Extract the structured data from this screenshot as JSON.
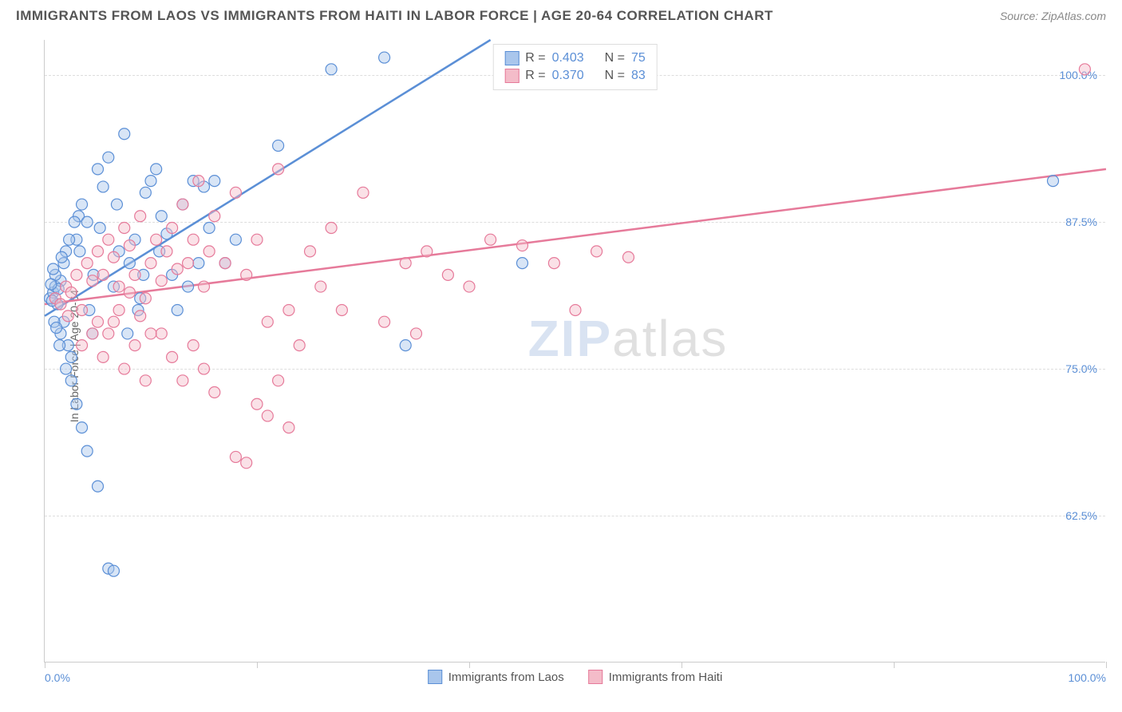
{
  "header": {
    "title": "IMMIGRANTS FROM LAOS VS IMMIGRANTS FROM HAITI IN LABOR FORCE | AGE 20-64 CORRELATION CHART",
    "source": "Source: ZipAtlas.com"
  },
  "chart": {
    "type": "scatter",
    "ylabel": "In Labor Force | Age 20-64",
    "xlim": [
      0,
      100
    ],
    "ylim": [
      50,
      103
    ],
    "xtick_positions": [
      0,
      20,
      40,
      60,
      80,
      100
    ],
    "xtick_labels_shown": {
      "0": "0.0%",
      "100": "100.0%"
    },
    "ytick_positions": [
      62.5,
      75.0,
      87.5,
      100.0
    ],
    "ytick_labels": [
      "62.5%",
      "75.0%",
      "87.5%",
      "100.0%"
    ],
    "grid_color": "#dddddd",
    "axis_color": "#cccccc",
    "background_color": "#ffffff",
    "watermark": "ZIPatlas",
    "series": [
      {
        "id": "laos",
        "label": "Immigrants from Laos",
        "color_fill": "#a9c6ec",
        "color_stroke": "#5b8fd6",
        "marker_radius": 7,
        "fill_opacity": 0.45,
        "R": "0.403",
        "N": "75",
        "trend": {
          "x1": 0,
          "y1": 79.5,
          "x2": 42,
          "y2": 103,
          "stroke_width": 2.5
        },
        "points": [
          [
            0.5,
            81
          ],
          [
            0.8,
            81.5
          ],
          [
            1.0,
            82
          ],
          [
            1.2,
            80.5
          ],
          [
            1.5,
            82.5
          ],
          [
            1.0,
            83
          ],
          [
            1.3,
            81.8
          ],
          [
            0.7,
            80.8
          ],
          [
            1.8,
            84
          ],
          [
            2.0,
            85
          ],
          [
            2.2,
            77
          ],
          [
            2.5,
            74
          ],
          [
            3.0,
            86
          ],
          [
            3.2,
            88
          ],
          [
            3.5,
            89
          ],
          [
            4.0,
            87.5
          ],
          [
            4.2,
            80
          ],
          [
            4.5,
            78
          ],
          [
            5.0,
            92
          ],
          [
            5.5,
            90.5
          ],
          [
            6.0,
            93
          ],
          [
            6.5,
            82
          ],
          [
            7.0,
            85
          ],
          [
            7.5,
            95
          ],
          [
            8.0,
            84
          ],
          [
            8.5,
            86
          ],
          [
            9.0,
            81
          ],
          [
            9.5,
            90
          ],
          [
            10.0,
            91
          ],
          [
            10.5,
            92
          ],
          [
            11.0,
            88
          ],
          [
            12.0,
            83
          ],
          [
            13.0,
            89
          ],
          [
            14.0,
            91
          ],
          [
            15.0,
            90.5
          ],
          [
            16.0,
            91
          ],
          [
            17.0,
            84
          ],
          [
            18.0,
            86
          ],
          [
            3.0,
            72
          ],
          [
            3.5,
            70
          ],
          [
            4.0,
            68
          ],
          [
            5.0,
            65
          ],
          [
            6.0,
            58
          ],
          [
            6.5,
            57.8
          ],
          [
            2.0,
            75
          ],
          [
            2.5,
            76
          ],
          [
            1.5,
            78
          ],
          [
            1.8,
            79
          ],
          [
            0.9,
            79
          ],
          [
            1.1,
            78.5
          ],
          [
            1.4,
            77
          ],
          [
            0.6,
            82.2
          ],
          [
            0.8,
            83.5
          ],
          [
            1.6,
            84.5
          ],
          [
            2.3,
            86
          ],
          [
            2.8,
            87.5
          ],
          [
            3.3,
            85
          ],
          [
            4.6,
            83
          ],
          [
            5.2,
            87
          ],
          [
            6.8,
            89
          ],
          [
            7.8,
            78
          ],
          [
            8.8,
            80
          ],
          [
            9.3,
            83
          ],
          [
            10.8,
            85
          ],
          [
            11.5,
            86.5
          ],
          [
            12.5,
            80
          ],
          [
            13.5,
            82
          ],
          [
            14.5,
            84
          ],
          [
            15.5,
            87
          ],
          [
            22,
            94
          ],
          [
            27,
            100.5
          ],
          [
            32,
            101.5
          ],
          [
            34,
            77
          ],
          [
            45,
            84
          ],
          [
            95,
            91
          ]
        ]
      },
      {
        "id": "haiti",
        "label": "Immigrants from Haiti",
        "color_fill": "#f4bcc9",
        "color_stroke": "#e67a9a",
        "marker_radius": 7,
        "fill_opacity": 0.45,
        "R": "0.370",
        "N": "83",
        "trend": {
          "x1": 0,
          "y1": 80.5,
          "x2": 100,
          "y2": 92,
          "stroke_width": 2.5
        },
        "points": [
          [
            1.0,
            81
          ],
          [
            1.5,
            80.5
          ],
          [
            2.0,
            82
          ],
          [
            2.5,
            81.5
          ],
          [
            3.0,
            83
          ],
          [
            3.5,
            80
          ],
          [
            4.0,
            84
          ],
          [
            4.5,
            82.5
          ],
          [
            5.0,
            85
          ],
          [
            5.5,
            83
          ],
          [
            6.0,
            86
          ],
          [
            6.5,
            84.5
          ],
          [
            7.0,
            82
          ],
          [
            7.5,
            87
          ],
          [
            8.0,
            85.5
          ],
          [
            8.5,
            83
          ],
          [
            9.0,
            88
          ],
          [
            9.5,
            81
          ],
          [
            10.0,
            84
          ],
          [
            10.5,
            86
          ],
          [
            11.0,
            82.5
          ],
          [
            11.5,
            85
          ],
          [
            12.0,
            87
          ],
          [
            12.5,
            83.5
          ],
          [
            13.0,
            89
          ],
          [
            13.5,
            84
          ],
          [
            14.0,
            86
          ],
          [
            14.5,
            91
          ],
          [
            15.0,
            82
          ],
          [
            15.5,
            85
          ],
          [
            16.0,
            88
          ],
          [
            17.0,
            84
          ],
          [
            18.0,
            90
          ],
          [
            19.0,
            83
          ],
          [
            20.0,
            86
          ],
          [
            21.0,
            79
          ],
          [
            22.0,
            92
          ],
          [
            23.0,
            80
          ],
          [
            24.0,
            77
          ],
          [
            25.0,
            85
          ],
          [
            26.0,
            82
          ],
          [
            27.0,
            87
          ],
          [
            28.0,
            80
          ],
          [
            14.0,
            77
          ],
          [
            15.0,
            75
          ],
          [
            16.0,
            73
          ],
          [
            18.0,
            67.5
          ],
          [
            19.0,
            67
          ],
          [
            20.0,
            72
          ],
          [
            21.0,
            71
          ],
          [
            22.0,
            74
          ],
          [
            23.0,
            70
          ],
          [
            11.0,
            78
          ],
          [
            12.0,
            76
          ],
          [
            13.0,
            74
          ],
          [
            30.0,
            90
          ],
          [
            32.0,
            79
          ],
          [
            34.0,
            84
          ],
          [
            36.0,
            85
          ],
          [
            38.0,
            83
          ],
          [
            42.0,
            86
          ],
          [
            45.0,
            85.5
          ],
          [
            48.0,
            84
          ],
          [
            50.0,
            80
          ],
          [
            52.0,
            85
          ],
          [
            55.0,
            84.5
          ],
          [
            3.5,
            77
          ],
          [
            4.5,
            78
          ],
          [
            5.5,
            76
          ],
          [
            6.5,
            79
          ],
          [
            7.5,
            75
          ],
          [
            8.5,
            77
          ],
          [
            9.5,
            74
          ],
          [
            35,
            78
          ],
          [
            40,
            82
          ],
          [
            5.0,
            79
          ],
          [
            6.0,
            78
          ],
          [
            7.0,
            80
          ],
          [
            8.0,
            81.5
          ],
          [
            9.0,
            79.5
          ],
          [
            10.0,
            78
          ],
          [
            98,
            100.5
          ],
          [
            2.2,
            79.5
          ]
        ]
      }
    ],
    "legend_top": {
      "R_label": "R =",
      "N_label": "N ="
    }
  }
}
